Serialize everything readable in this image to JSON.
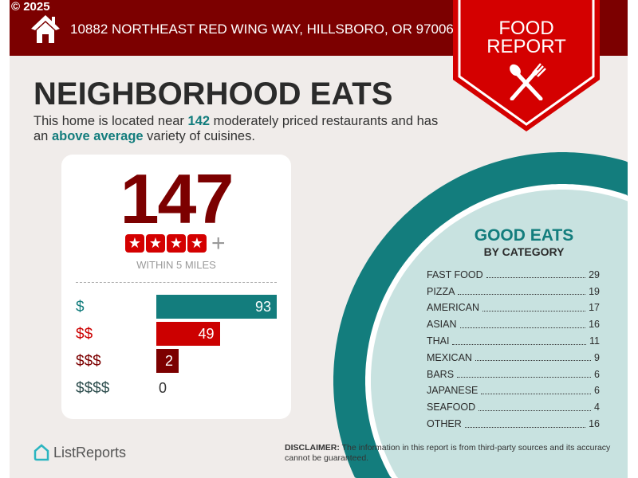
{
  "header": {
    "copyright": "© 2025",
    "address": "10882 NORTHEAST RED WING WAY, HILLSBORO, OR 97006",
    "badge_line1": "FOOD",
    "badge_line2": "REPORT"
  },
  "title": "NEIGHBORHOOD EATS",
  "subtitle": {
    "pre": "This home is located near ",
    "count": "142",
    "mid": " moderately priced restaurants and has an ",
    "variety": "above average",
    "post": " variety of cuisines."
  },
  "summary": {
    "total": "147",
    "rating_stars": 4,
    "rating_suffix": "+",
    "within": "WITHIN 5 MILES"
  },
  "price_levels": [
    {
      "label": "$",
      "value": 93,
      "color": "#137d7d"
    },
    {
      "label": "$$",
      "value": 49,
      "color": "#cc0000"
    },
    {
      "label": "$$$",
      "value": 2,
      "color": "#7c0000"
    },
    {
      "label": "$$$$",
      "value": 0,
      "color": "#2f4f4f"
    }
  ],
  "good_eats": {
    "title": "GOOD EATS",
    "subtitle": "BY CATEGORY",
    "categories": [
      {
        "name": "FAST FOOD",
        "count": "29"
      },
      {
        "name": "PIZZA",
        "count": "19"
      },
      {
        "name": "AMERICAN",
        "count": "17"
      },
      {
        "name": "ASIAN",
        "count": "16"
      },
      {
        "name": "THAI",
        "count": "11"
      },
      {
        "name": "MEXICAN",
        "count": "9"
      },
      {
        "name": "BARS",
        "count": "6"
      },
      {
        "name": "JAPANESE",
        "count": "6"
      },
      {
        "name": "SEAFOOD",
        "count": "4"
      },
      {
        "name": "OTHER",
        "count": "16"
      }
    ]
  },
  "footer": {
    "logo": "ListReports",
    "disclaimer_label": "DISCLAIMER:",
    "disclaimer": " The information in this report is from third-party sources and its accuracy cannot be guaranteed."
  },
  "colors": {
    "dark_red": "#7c0000",
    "red": "#d40000",
    "teal": "#137d7d",
    "light_teal": "#c8e2e0"
  }
}
